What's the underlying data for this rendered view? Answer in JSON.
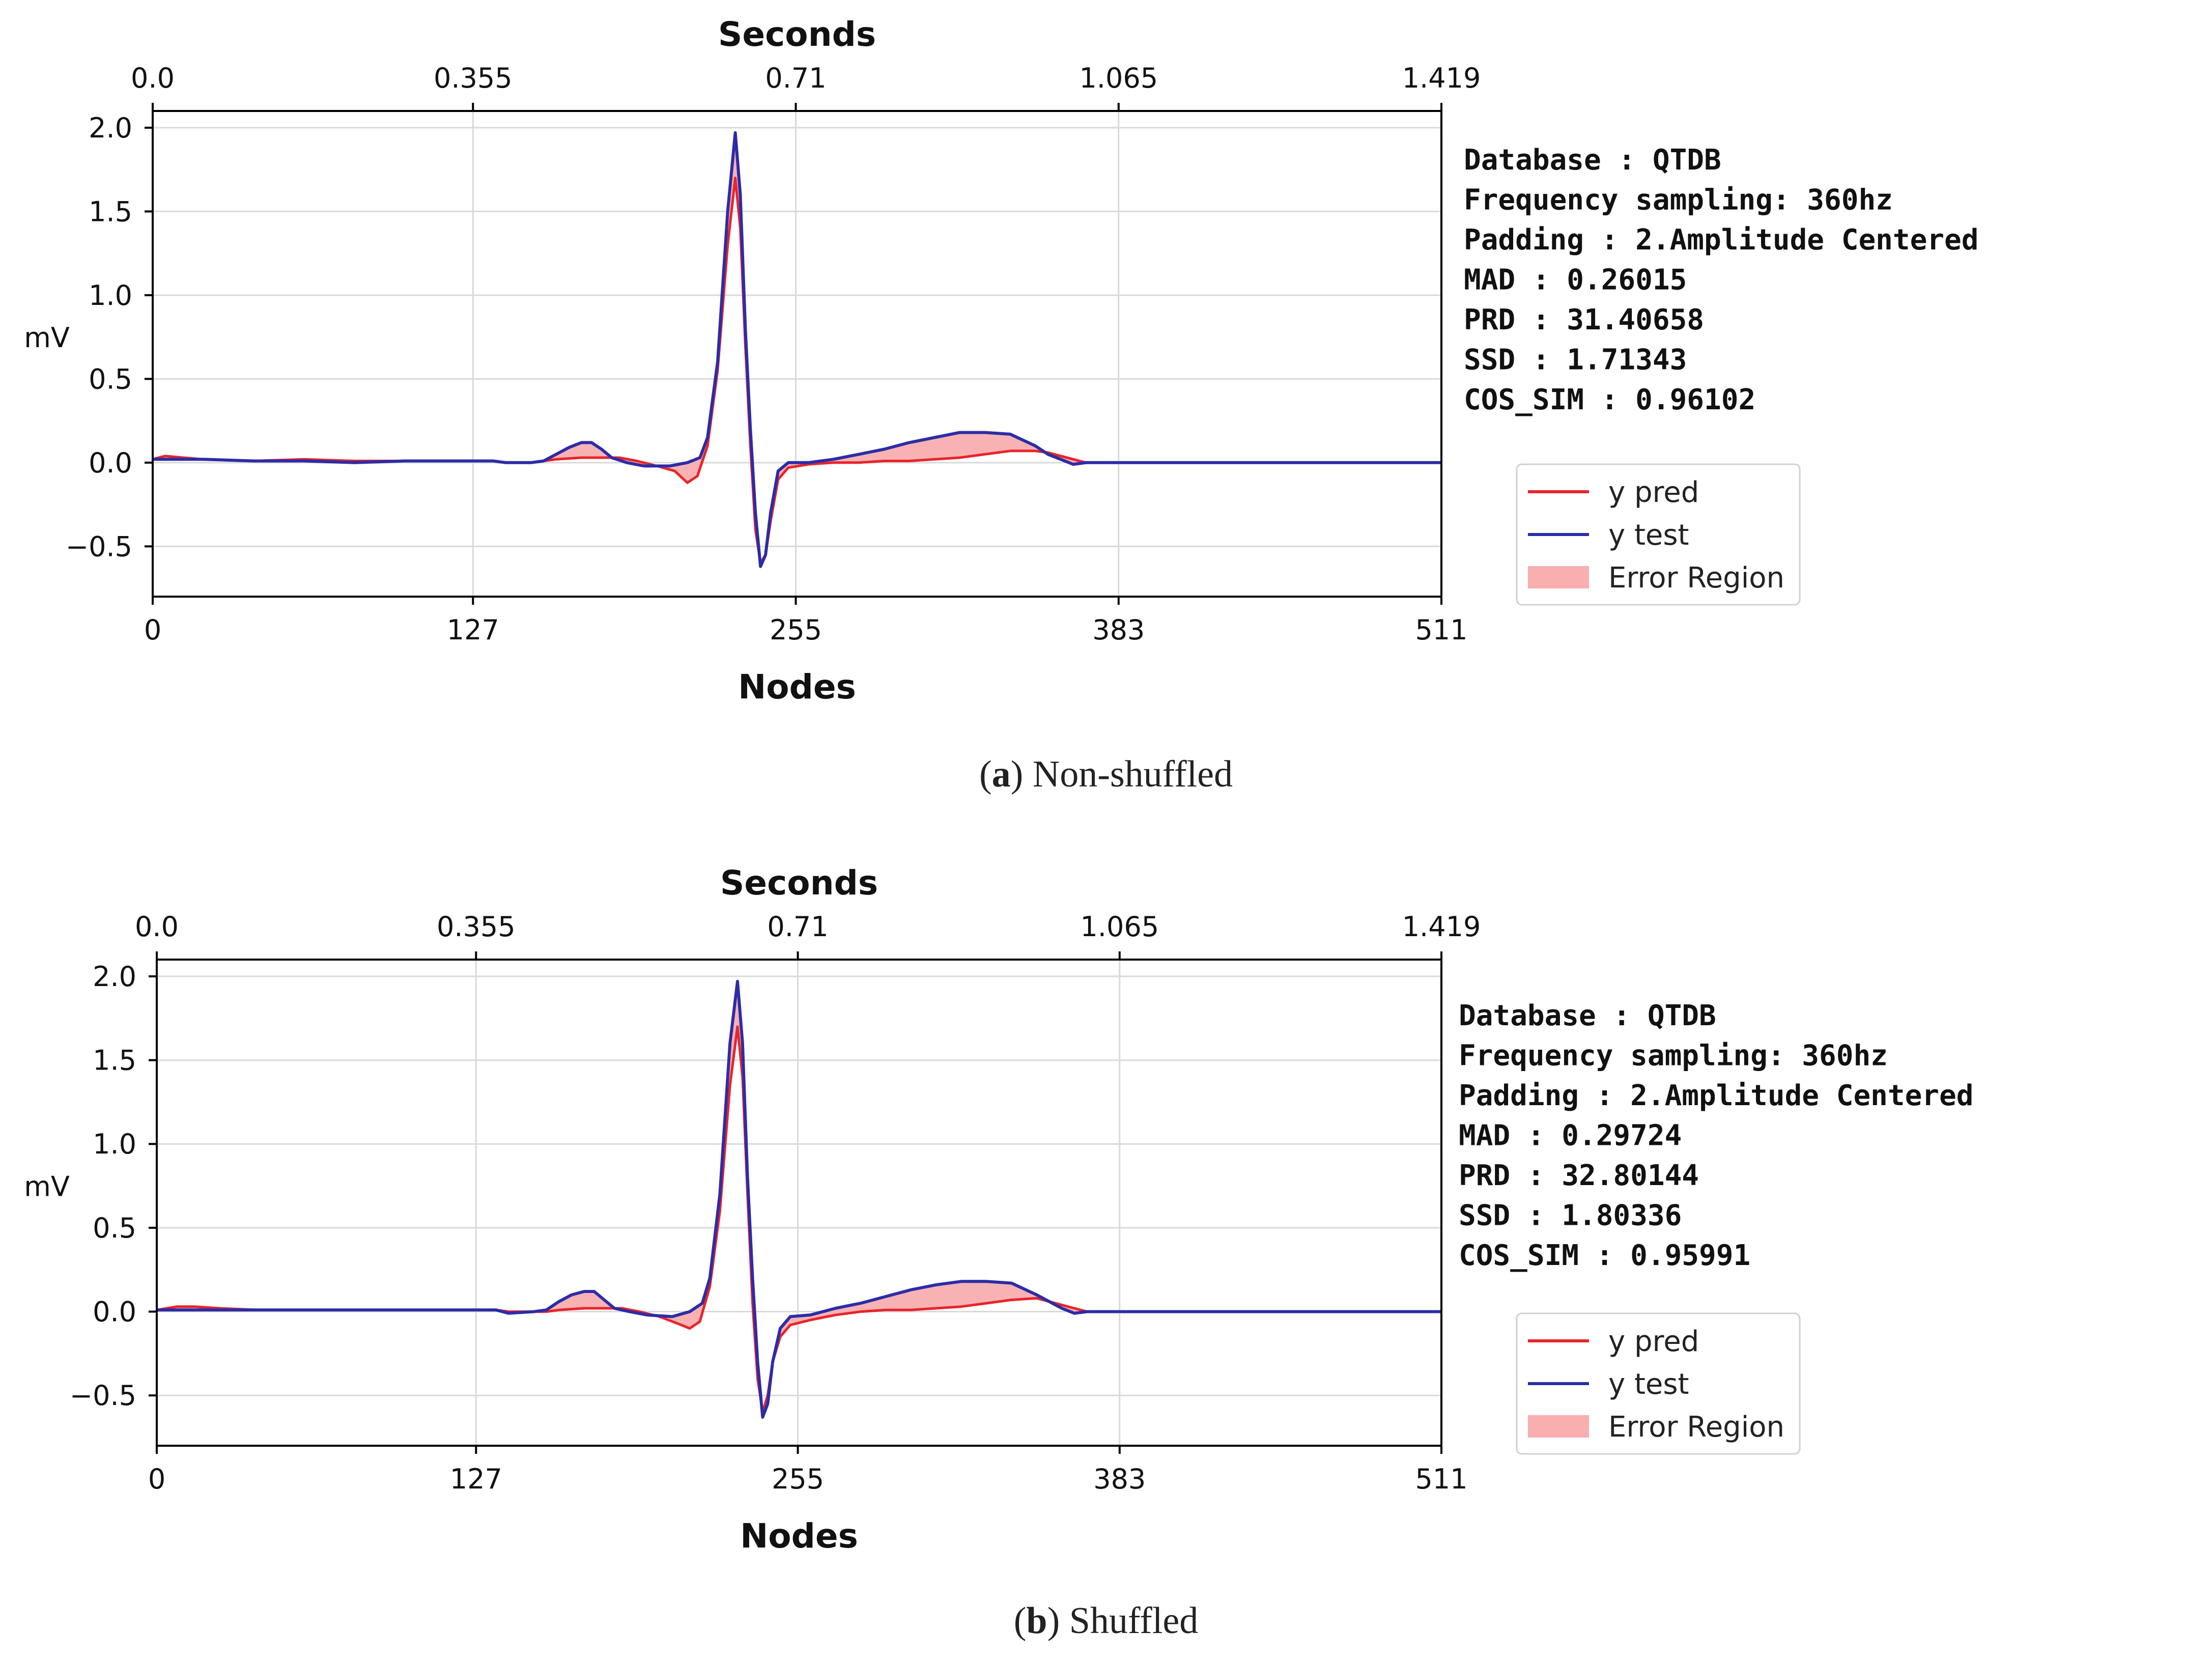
{
  "panels": [
    {
      "caption": {
        "label": "a",
        "text": "Non-shuffled"
      },
      "info": [
        {
          "key": "Database",
          "value": "QTDB"
        },
        {
          "key": "Frequency sampling",
          "value": "360hz"
        },
        {
          "key": "Padding",
          "value": "2.Amplitude Centered"
        },
        {
          "key": "MAD",
          "value": "0.26015"
        },
        {
          "key": "PRD",
          "value": "31.40658"
        },
        {
          "key": "SSD",
          "value": "1.71343"
        },
        {
          "key": "COS_SIM",
          "value": "0.96102"
        }
      ]
    },
    {
      "caption": {
        "label": "b",
        "text": "Shuffled"
      },
      "info": [
        {
          "key": "Database",
          "value": "QTDB"
        },
        {
          "key": "Frequency sampling",
          "value": "360hz"
        },
        {
          "key": "Padding",
          "value": "2.Amplitude Centered"
        },
        {
          "key": "MAD",
          "value": "0.29724"
        },
        {
          "key": "PRD",
          "value": "32.80144"
        },
        {
          "key": "SSD",
          "value": "1.80336"
        },
        {
          "key": "COS_SIM",
          "value": "0.95991"
        }
      ]
    }
  ],
  "chart_data": [
    {
      "type": "line",
      "title": "Seconds",
      "xlabel": "Nodes",
      "ylabel": "mV",
      "xlim": [
        0,
        511
      ],
      "ylim": [
        -0.8,
        2.1
      ],
      "grid": true,
      "x_ticks": [
        0,
        127,
        255,
        383,
        511
      ],
      "x_tick_labels": [
        "0",
        "127",
        "255",
        "383",
        "511"
      ],
      "top_ticks": [
        0,
        127,
        255,
        383,
        511
      ],
      "top_tick_labels": [
        "0.0",
        "0.355",
        "0.71",
        "1.065",
        "1.419"
      ],
      "y_ticks": [
        2.0,
        1.5,
        1.0,
        0.5,
        0.0,
        -0.5
      ],
      "y_tick_labels": [
        "2.0",
        "1.5",
        "1.0",
        "0.5",
        "0.0",
        "−0.5"
      ],
      "legend": {
        "position": "right",
        "entries": [
          "y pred",
          "y test",
          "Error Region"
        ]
      },
      "colors": {
        "pred": "#e8242a",
        "test": "#2c2ca8",
        "error_fill": "#f9aeb0"
      },
      "series": [
        {
          "name": "y test",
          "points": [
            [
              0,
              0.02
            ],
            [
              10,
              0.02
            ],
            [
              20,
              0.02
            ],
            [
              40,
              0.01
            ],
            [
              60,
              0.01
            ],
            [
              80,
              0.0
            ],
            [
              100,
              0.01
            ],
            [
              127,
              0.01
            ],
            [
              135,
              0.01
            ],
            [
              140,
              0.0
            ],
            [
              150,
              0.0
            ],
            [
              155,
              0.01
            ],
            [
              160,
              0.05
            ],
            [
              165,
              0.09
            ],
            [
              170,
              0.12
            ],
            [
              174,
              0.12
            ],
            [
              178,
              0.08
            ],
            [
              182,
              0.03
            ],
            [
              188,
              0.0
            ],
            [
              195,
              -0.02
            ],
            [
              205,
              -0.02
            ],
            [
              212,
              0.0
            ],
            [
              217,
              0.03
            ],
            [
              220,
              0.15
            ],
            [
              224,
              0.6
            ],
            [
              228,
              1.5
            ],
            [
              231,
              1.97
            ],
            [
              233,
              1.6
            ],
            [
              235,
              0.8
            ],
            [
              237,
              0.2
            ],
            [
              239,
              -0.3
            ],
            [
              241,
              -0.62
            ],
            [
              243,
              -0.55
            ],
            [
              245,
              -0.3
            ],
            [
              248,
              -0.05
            ],
            [
              252,
              0.0
            ],
            [
              260,
              0.0
            ],
            [
              270,
              0.02
            ],
            [
              280,
              0.05
            ],
            [
              290,
              0.08
            ],
            [
              300,
              0.12
            ],
            [
              310,
              0.15
            ],
            [
              320,
              0.18
            ],
            [
              330,
              0.18
            ],
            [
              340,
              0.17
            ],
            [
              350,
              0.1
            ],
            [
              355,
              0.05
            ],
            [
              360,
              0.02
            ],
            [
              365,
              -0.01
            ],
            [
              370,
              0.0
            ],
            [
              383,
              0.0
            ],
            [
              420,
              0.0
            ],
            [
              460,
              0.0
            ],
            [
              500,
              0.0
            ],
            [
              511,
              0.0
            ]
          ]
        },
        {
          "name": "y pred",
          "points": [
            [
              0,
              0.02
            ],
            [
              5,
              0.04
            ],
            [
              12,
              0.03
            ],
            [
              20,
              0.02
            ],
            [
              40,
              0.01
            ],
            [
              60,
              0.02
            ],
            [
              80,
              0.01
            ],
            [
              100,
              0.01
            ],
            [
              127,
              0.01
            ],
            [
              135,
              0.01
            ],
            [
              140,
              0.0
            ],
            [
              150,
              0.0
            ],
            [
              155,
              0.01
            ],
            [
              160,
              0.02
            ],
            [
              170,
              0.03
            ],
            [
              178,
              0.03
            ],
            [
              185,
              0.03
            ],
            [
              192,
              0.01
            ],
            [
              200,
              -0.02
            ],
            [
              207,
              -0.05
            ],
            [
              212,
              -0.12
            ],
            [
              216,
              -0.08
            ],
            [
              220,
              0.1
            ],
            [
              224,
              0.55
            ],
            [
              228,
              1.3
            ],
            [
              231,
              1.7
            ],
            [
              233,
              1.4
            ],
            [
              235,
              0.7
            ],
            [
              237,
              0.1
            ],
            [
              239,
              -0.4
            ],
            [
              241,
              -0.6
            ],
            [
              243,
              -0.55
            ],
            [
              245,
              -0.35
            ],
            [
              248,
              -0.1
            ],
            [
              252,
              -0.03
            ],
            [
              260,
              -0.01
            ],
            [
              270,
              0.0
            ],
            [
              280,
              0.0
            ],
            [
              290,
              0.01
            ],
            [
              300,
              0.01
            ],
            [
              310,
              0.02
            ],
            [
              320,
              0.03
            ],
            [
              330,
              0.05
            ],
            [
              340,
              0.07
            ],
            [
              350,
              0.07
            ],
            [
              355,
              0.06
            ],
            [
              360,
              0.04
            ],
            [
              365,
              0.02
            ],
            [
              370,
              0.0
            ],
            [
              383,
              0.0
            ],
            [
              420,
              0.0
            ],
            [
              460,
              0.0
            ],
            [
              500,
              0.0
            ],
            [
              511,
              0.0
            ]
          ]
        }
      ]
    },
    {
      "type": "line",
      "title": "Seconds",
      "xlabel": "Nodes",
      "ylabel": "mV",
      "xlim": [
        0,
        511
      ],
      "ylim": [
        -0.8,
        2.1
      ],
      "grid": true,
      "x_ticks": [
        0,
        127,
        255,
        383,
        511
      ],
      "x_tick_labels": [
        "0",
        "127",
        "255",
        "383",
        "511"
      ],
      "top_ticks": [
        0,
        127,
        255,
        383,
        511
      ],
      "top_tick_labels": [
        "0.0",
        "0.355",
        "0.71",
        "1.065",
        "1.419"
      ],
      "y_ticks": [
        2.0,
        1.5,
        1.0,
        0.5,
        0.0,
        -0.5
      ],
      "y_tick_labels": [
        "2.0",
        "1.5",
        "1.0",
        "0.5",
        "0.0",
        "−0.5"
      ],
      "legend": {
        "position": "right",
        "entries": [
          "y pred",
          "y test",
          "Error Region"
        ]
      },
      "colors": {
        "pred": "#e8242a",
        "test": "#2c2ca8",
        "error_fill": "#f9aeb0"
      },
      "series": [
        {
          "name": "y test",
          "points": [
            [
              0,
              0.01
            ],
            [
              10,
              0.01
            ],
            [
              20,
              0.01
            ],
            [
              40,
              0.01
            ],
            [
              60,
              0.01
            ],
            [
              80,
              0.01
            ],
            [
              100,
              0.01
            ],
            [
              127,
              0.01
            ],
            [
              135,
              0.01
            ],
            [
              140,
              -0.01
            ],
            [
              150,
              0.0
            ],
            [
              155,
              0.01
            ],
            [
              160,
              0.06
            ],
            [
              165,
              0.1
            ],
            [
              170,
              0.12
            ],
            [
              174,
              0.12
            ],
            [
              178,
              0.07
            ],
            [
              182,
              0.02
            ],
            [
              188,
              0.0
            ],
            [
              195,
              -0.02
            ],
            [
              205,
              -0.03
            ],
            [
              212,
              0.0
            ],
            [
              217,
              0.05
            ],
            [
              220,
              0.2
            ],
            [
              224,
              0.7
            ],
            [
              228,
              1.6
            ],
            [
              231,
              1.97
            ],
            [
              233,
              1.6
            ],
            [
              235,
              0.8
            ],
            [
              237,
              0.2
            ],
            [
              239,
              -0.3
            ],
            [
              241,
              -0.63
            ],
            [
              243,
              -0.55
            ],
            [
              245,
              -0.3
            ],
            [
              248,
              -0.1
            ],
            [
              252,
              -0.03
            ],
            [
              260,
              -0.02
            ],
            [
              270,
              0.02
            ],
            [
              280,
              0.05
            ],
            [
              290,
              0.09
            ],
            [
              300,
              0.13
            ],
            [
              310,
              0.16
            ],
            [
              320,
              0.18
            ],
            [
              330,
              0.18
            ],
            [
              340,
              0.17
            ],
            [
              350,
              0.1
            ],
            [
              355,
              0.06
            ],
            [
              360,
              0.02
            ],
            [
              365,
              -0.01
            ],
            [
              370,
              0.0
            ],
            [
              383,
              0.0
            ],
            [
              420,
              0.0
            ],
            [
              460,
              0.0
            ],
            [
              500,
              0.0
            ],
            [
              511,
              0.0
            ]
          ]
        },
        {
          "name": "y pred",
          "points": [
            [
              0,
              0.01
            ],
            [
              8,
              0.03
            ],
            [
              15,
              0.03
            ],
            [
              25,
              0.02
            ],
            [
              40,
              0.01
            ],
            [
              60,
              0.01
            ],
            [
              80,
              0.01
            ],
            [
              100,
              0.01
            ],
            [
              127,
              0.01
            ],
            [
              135,
              0.01
            ],
            [
              140,
              0.0
            ],
            [
              150,
              0.0
            ],
            [
              155,
              0.0
            ],
            [
              160,
              0.01
            ],
            [
              170,
              0.02
            ],
            [
              178,
              0.02
            ],
            [
              185,
              0.02
            ],
            [
              192,
              0.0
            ],
            [
              200,
              -0.03
            ],
            [
              207,
              -0.07
            ],
            [
              212,
              -0.1
            ],
            [
              216,
              -0.06
            ],
            [
              220,
              0.15
            ],
            [
              224,
              0.6
            ],
            [
              228,
              1.35
            ],
            [
              231,
              1.7
            ],
            [
              233,
              1.4
            ],
            [
              235,
              0.7
            ],
            [
              237,
              0.05
            ],
            [
              239,
              -0.4
            ],
            [
              241,
              -0.6
            ],
            [
              243,
              -0.5
            ],
            [
              245,
              -0.3
            ],
            [
              248,
              -0.15
            ],
            [
              252,
              -0.08
            ],
            [
              260,
              -0.05
            ],
            [
              270,
              -0.02
            ],
            [
              280,
              0.0
            ],
            [
              290,
              0.01
            ],
            [
              300,
              0.01
            ],
            [
              310,
              0.02
            ],
            [
              320,
              0.03
            ],
            [
              330,
              0.05
            ],
            [
              340,
              0.07
            ],
            [
              350,
              0.08
            ],
            [
              355,
              0.06
            ],
            [
              360,
              0.04
            ],
            [
              365,
              0.02
            ],
            [
              370,
              0.0
            ],
            [
              383,
              0.0
            ],
            [
              420,
              0.0
            ],
            [
              460,
              0.0
            ],
            [
              500,
              0.0
            ],
            [
              511,
              0.0
            ]
          ]
        }
      ]
    }
  ]
}
